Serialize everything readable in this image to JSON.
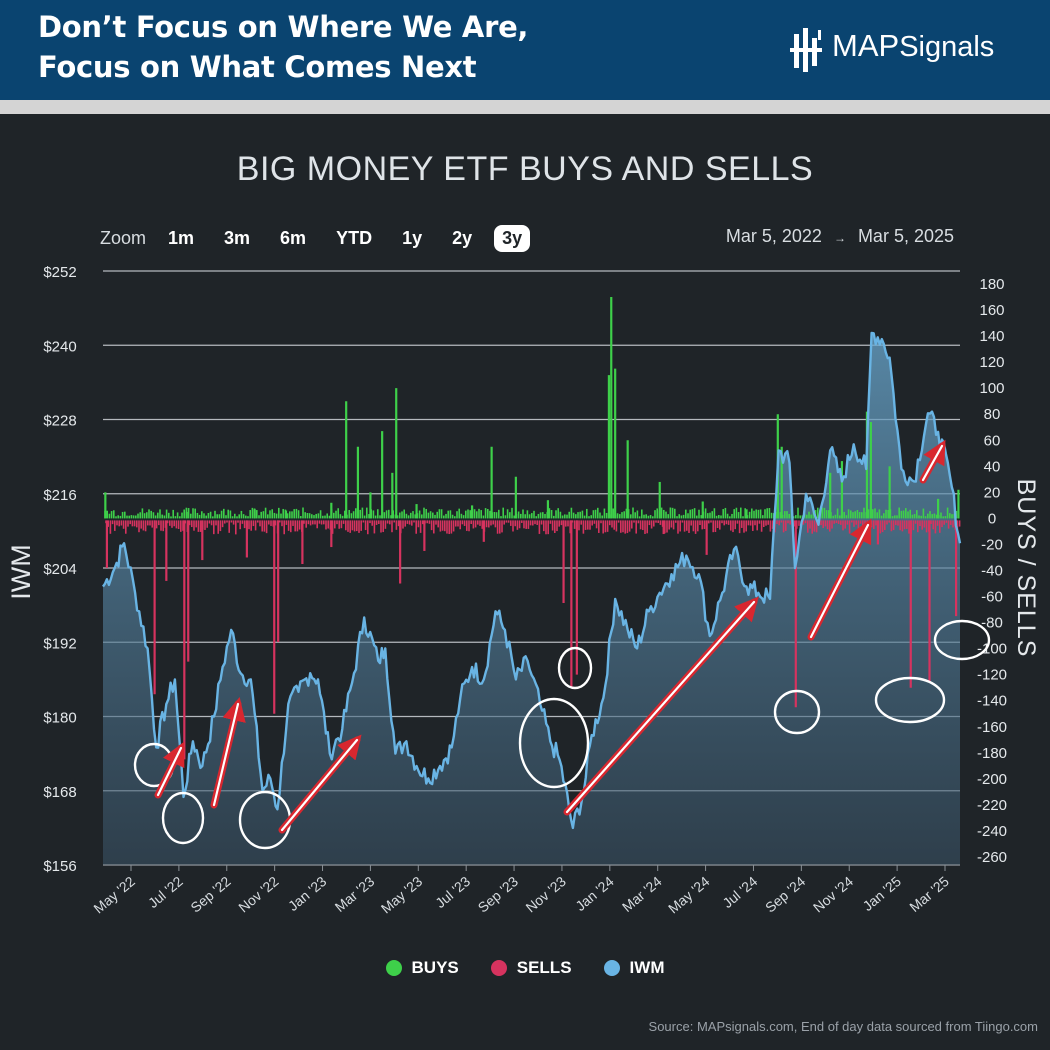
{
  "header": {
    "line1": "Don’t Focus on Where We Are,",
    "line2": "Focus on What Comes Next",
    "brand_map": "MAP",
    "brand_signals": "Signals",
    "bg_color": "#0a4470"
  },
  "toolbar": {
    "zoom_label": "Zoom",
    "buttons": [
      "1m",
      "3m",
      "6m",
      "YTD",
      "1y",
      "2y",
      "3y"
    ],
    "active": "3y",
    "range_start": "Mar 5, 2022",
    "range_arrow": "→",
    "range_end": "Mar 5, 2025"
  },
  "chart_data": {
    "type": "line+bar",
    "title": "BIG MONEY ETF BUYS AND SELLS",
    "y_left_label": "IWM",
    "y_right_label": "BUYS / SELLS",
    "y_left_ticks": [
      "$156",
      "$168",
      "$180",
      "$192",
      "$204",
      "$216",
      "$228",
      "$240",
      "$252"
    ],
    "y_left_range": [
      156,
      252
    ],
    "y_right_ticks": [
      "180",
      "160",
      "140",
      "120",
      "100",
      "80",
      "60",
      "40",
      "20",
      "0",
      "-20",
      "-40",
      "-60",
      "-80",
      "-100",
      "-120",
      "-140",
      "-160",
      "-180",
      "-200",
      "-220",
      "-240",
      "-260"
    ],
    "y_right_range": [
      -260,
      180
    ],
    "x_ticks": [
      "May '22",
      "Jul '22",
      "Sep '22",
      "Nov '22",
      "Jan '23",
      "Mar '23",
      "May '23",
      "Jul '23",
      "Sep '23",
      "Nov '23",
      "Jan '24",
      "Mar '24",
      "May '24",
      "Jul '24",
      "Sep '24",
      "Nov '24",
      "Jan '25",
      "Mar '25"
    ],
    "x_range": [
      "2022-03-05",
      "2025-03-05"
    ],
    "grid": true,
    "legend_position": "bottom-center",
    "iwm_series": {
      "name": "IWM",
      "color": "#69b4e4",
      "points": [
        [
          "2022-03-05",
          201
        ],
        [
          "2022-03-20",
          204
        ],
        [
          "2022-04-01",
          208
        ],
        [
          "2022-04-15",
          200
        ],
        [
          "2022-05-01",
          191
        ],
        [
          "2022-05-12",
          175
        ],
        [
          "2022-05-25",
          182
        ],
        [
          "2022-06-05",
          186
        ],
        [
          "2022-06-16",
          167
        ],
        [
          "2022-06-28",
          176
        ],
        [
          "2022-07-10",
          172
        ],
        [
          "2022-07-25",
          180
        ],
        [
          "2022-08-05",
          188
        ],
        [
          "2022-08-16",
          194
        ],
        [
          "2022-08-28",
          187
        ],
        [
          "2022-09-10",
          186
        ],
        [
          "2022-09-25",
          168
        ],
        [
          "2022-10-05",
          170
        ],
        [
          "2022-10-14",
          165
        ],
        [
          "2022-10-28",
          182
        ],
        [
          "2022-11-10",
          184
        ],
        [
          "2022-11-25",
          187
        ],
        [
          "2022-12-05",
          186
        ],
        [
          "2022-12-20",
          174
        ],
        [
          "2023-01-05",
          178
        ],
        [
          "2023-01-20",
          187
        ],
        [
          "2023-02-02",
          196
        ],
        [
          "2023-02-20",
          189
        ],
        [
          "2023-03-01",
          191
        ],
        [
          "2023-03-14",
          174
        ],
        [
          "2023-03-28",
          176
        ],
        [
          "2023-04-10",
          172
        ],
        [
          "2023-04-25",
          170
        ],
        [
          "2023-05-10",
          172
        ],
        [
          "2023-05-25",
          175
        ],
        [
          "2023-06-05",
          183
        ],
        [
          "2023-06-20",
          188
        ],
        [
          "2023-07-05",
          186
        ],
        [
          "2023-07-20",
          197
        ],
        [
          "2023-08-01",
          194
        ],
        [
          "2023-08-15",
          186
        ],
        [
          "2023-08-30",
          189
        ],
        [
          "2023-09-15",
          182
        ],
        [
          "2023-09-28",
          176
        ],
        [
          "2023-10-10",
          173
        ],
        [
          "2023-10-27",
          162
        ],
        [
          "2023-11-10",
          168
        ],
        [
          "2023-11-20",
          177
        ],
        [
          "2023-12-05",
          183
        ],
        [
          "2023-12-20",
          199
        ],
        [
          "2024-01-05",
          194
        ],
        [
          "2024-01-17",
          191
        ],
        [
          "2024-02-01",
          197
        ],
        [
          "2024-02-15",
          200
        ],
        [
          "2024-03-01",
          203
        ],
        [
          "2024-03-20",
          206
        ],
        [
          "2024-04-05",
          203
        ],
        [
          "2024-04-19",
          193
        ],
        [
          "2024-05-05",
          200
        ],
        [
          "2024-05-20",
          207
        ],
        [
          "2024-06-05",
          201
        ],
        [
          "2024-06-20",
          200
        ],
        [
          "2024-07-05",
          199
        ],
        [
          "2024-07-16",
          223
        ],
        [
          "2024-07-30",
          221
        ],
        [
          "2024-08-06",
          204
        ],
        [
          "2024-08-20",
          216
        ],
        [
          "2024-09-05",
          211
        ],
        [
          "2024-09-20",
          223
        ],
        [
          "2024-10-05",
          218
        ],
        [
          "2024-10-20",
          224
        ],
        [
          "2024-11-05",
          220
        ],
        [
          "2024-11-12",
          242
        ],
        [
          "2024-11-25",
          241
        ],
        [
          "2024-12-05",
          238
        ],
        [
          "2024-12-20",
          220
        ],
        [
          "2025-01-05",
          218
        ],
        [
          "2025-01-23",
          229
        ],
        [
          "2025-02-05",
          226
        ],
        [
          "2025-02-20",
          219
        ],
        [
          "2025-03-05",
          208
        ]
      ]
    },
    "buys_series": {
      "name": "BUYS",
      "color": "#3ed04a",
      "spikes": [
        [
          "2022-03-08",
          20
        ],
        [
          "2022-06-20",
          5
        ],
        [
          "2022-09-15",
          7
        ],
        [
          "2022-10-25",
          6
        ],
        [
          "2022-12-22",
          12
        ],
        [
          "2023-01-10",
          90
        ],
        [
          "2023-01-25",
          55
        ],
        [
          "2023-02-10",
          20
        ],
        [
          "2023-02-25",
          67
        ],
        [
          "2023-03-10",
          35
        ],
        [
          "2023-03-15",
          100
        ],
        [
          "2023-04-10",
          11
        ],
        [
          "2023-06-20",
          10
        ],
        [
          "2023-07-15",
          55
        ],
        [
          "2023-08-15",
          32
        ],
        [
          "2023-09-25",
          14
        ],
        [
          "2023-12-12",
          110
        ],
        [
          "2023-12-15",
          170
        ],
        [
          "2023-12-20",
          115
        ],
        [
          "2024-01-05",
          60
        ],
        [
          "2024-02-15",
          28
        ],
        [
          "2024-04-10",
          13
        ],
        [
          "2024-06-05",
          7
        ],
        [
          "2024-07-15",
          80
        ],
        [
          "2024-07-20",
          55
        ],
        [
          "2024-09-20",
          35
        ],
        [
          "2024-10-05",
          44
        ],
        [
          "2024-11-06",
          82
        ],
        [
          "2024-11-11",
          74
        ],
        [
          "2024-12-05",
          40
        ],
        [
          "2025-02-05",
          15
        ],
        [
          "2025-03-03",
          22
        ]
      ]
    },
    "sells_series": {
      "name": "SELLS",
      "color": "#d6335f",
      "spikes": [
        [
          "2022-03-10",
          -38
        ],
        [
          "2022-05-10",
          -135
        ],
        [
          "2022-05-25",
          -48
        ],
        [
          "2022-06-17",
          -185
        ],
        [
          "2022-06-22",
          -110
        ],
        [
          "2022-07-10",
          -32
        ],
        [
          "2022-09-05",
          -30
        ],
        [
          "2022-10-10",
          -150
        ],
        [
          "2022-10-15",
          -95
        ],
        [
          "2022-11-15",
          -35
        ],
        [
          "2022-12-22",
          -22
        ],
        [
          "2023-03-20",
          -50
        ],
        [
          "2023-04-20",
          -25
        ],
        [
          "2023-07-05",
          -18
        ],
        [
          "2023-10-15",
          -65
        ],
        [
          "2023-10-25",
          -130
        ],
        [
          "2023-11-01",
          -120
        ],
        [
          "2024-02-20",
          -12
        ],
        [
          "2024-04-15",
          -28
        ],
        [
          "2024-08-07",
          -145
        ],
        [
          "2024-11-20",
          -20
        ],
        [
          "2025-01-01",
          -130
        ],
        [
          "2025-01-25",
          -125
        ],
        [
          "2025-02-28",
          -75
        ]
      ]
    }
  },
  "annotations": {
    "arrow_color": "#d8272f",
    "circle_color": "#ffffff"
  },
  "legend": {
    "buys": "BUYS",
    "sells": "SELLS",
    "iwm": "IWM",
    "buys_color": "#3ed04a",
    "sells_color": "#d6335f",
    "iwm_color": "#69b4e4"
  },
  "source": "Source: MAPsignals.com, End of day data sourced from Tiingo.com"
}
